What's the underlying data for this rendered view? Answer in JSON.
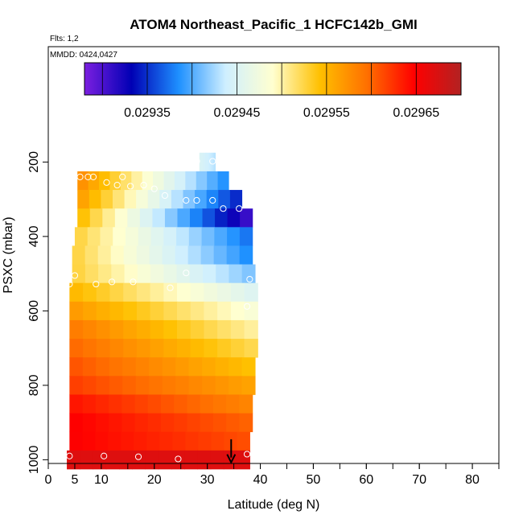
{
  "chart_data": {
    "type": "heatmap",
    "title": "ATOM4 Northeast_Pacific_1 HCFC142b_GMI",
    "subtitle_flights": "Flts: 1,2",
    "subtitle_dates": "MMDD: 0424,0427",
    "xlabel": "Latitude (deg N)",
    "ylabel": "PSXC (mbar)",
    "xlim": [
      0,
      85
    ],
    "ylim": [
      1010,
      -110
    ],
    "y_reversed": true,
    "x_ticks": [
      0,
      5,
      10,
      20,
      30,
      40,
      50,
      60,
      70,
      80
    ],
    "x_minor_ticks": [
      5,
      10,
      15,
      20,
      25,
      30,
      35,
      40,
      45,
      50,
      55,
      60,
      65,
      70,
      75,
      80,
      85
    ],
    "y_ticks": [
      200,
      400,
      600,
      800,
      1000
    ],
    "colorbar": {
      "min": 0.02928,
      "max": 0.0297,
      "tick_values": [
        0.02935,
        0.02945,
        0.02955,
        0.02965
      ],
      "tick_labels": [
        "0.02935",
        "0.02945",
        "0.02955",
        "0.02965"
      ],
      "stops": [
        "#7b1fe0",
        "#0000b4",
        "#1e90ff",
        "#cfefff",
        "#ffffd0",
        "#ffc000",
        "#ff7000",
        "#ff0000",
        "#b22222"
      ]
    },
    "layers": [
      {
        "p": 200,
        "x0": 28.5,
        "x1": 31.5,
        "v0": 0.02945,
        "v1": 0.02943
      },
      {
        "p": 250,
        "x0": 5.5,
        "x1": 34,
        "v0": 0.02958,
        "v1": 0.02938
      },
      {
        "p": 300,
        "x0": 5.5,
        "x1": 36.5,
        "v0": 0.02957,
        "v1": 0.02934
      },
      {
        "p": 350,
        "x0": 5.5,
        "x1": 38.5,
        "v0": 0.02955,
        "v1": 0.0293
      },
      {
        "p": 400,
        "x0": 5,
        "x1": 38.5,
        "v0": 0.02953,
        "v1": 0.02937
      },
      {
        "p": 450,
        "x0": 4.5,
        "x1": 38.5,
        "v0": 0.02953,
        "v1": 0.02938
      },
      {
        "p": 500,
        "x0": 4.5,
        "x1": 39,
        "v0": 0.02953,
        "v1": 0.02941
      },
      {
        "p": 550,
        "x0": 4,
        "x1": 39.5,
        "v0": 0.02955,
        "v1": 0.02945
      },
      {
        "p": 600,
        "x0": 4,
        "x1": 39.5,
        "v0": 0.02957,
        "v1": 0.02948
      },
      {
        "p": 650,
        "x0": 4,
        "x1": 39.5,
        "v0": 0.02959,
        "v1": 0.0295
      },
      {
        "p": 700,
        "x0": 4,
        "x1": 39.5,
        "v0": 0.0296,
        "v1": 0.02952
      },
      {
        "p": 750,
        "x0": 4,
        "x1": 39,
        "v0": 0.02961,
        "v1": 0.02954
      },
      {
        "p": 800,
        "x0": 4,
        "x1": 39,
        "v0": 0.02962,
        "v1": 0.02956
      },
      {
        "p": 850,
        "x0": 4,
        "x1": 38.5,
        "v0": 0.02964,
        "v1": 0.02958
      },
      {
        "p": 900,
        "x0": 4,
        "x1": 38.5,
        "v0": 0.02965,
        "v1": 0.0296
      },
      {
        "p": 950,
        "x0": 4,
        "x1": 38,
        "v0": 0.02965,
        "v1": 0.02961
      },
      {
        "p": 1000,
        "x0": 3.5,
        "x1": 38,
        "v0": 0.02967,
        "v1": 0.02967
      }
    ],
    "observations": [
      {
        "lat": 28,
        "p": 198
      },
      {
        "lat": 31,
        "p": 198
      },
      {
        "lat": 6,
        "p": 240
      },
      {
        "lat": 7.5,
        "p": 240
      },
      {
        "lat": 8.5,
        "p": 240
      },
      {
        "lat": 11,
        "p": 255
      },
      {
        "lat": 14,
        "p": 240
      },
      {
        "lat": 13,
        "p": 262
      },
      {
        "lat": 15.5,
        "p": 265
      },
      {
        "lat": 18,
        "p": 262
      },
      {
        "lat": 20,
        "p": 272
      },
      {
        "lat": 22,
        "p": 290
      },
      {
        "lat": 26,
        "p": 303
      },
      {
        "lat": 28,
        "p": 303
      },
      {
        "lat": 31,
        "p": 303
      },
      {
        "lat": 33,
        "p": 325
      },
      {
        "lat": 36,
        "p": 325
      },
      {
        "lat": 5,
        "p": 505
      },
      {
        "lat": 4,
        "p": 528
      },
      {
        "lat": 9,
        "p": 528
      },
      {
        "lat": 12,
        "p": 522
      },
      {
        "lat": 16,
        "p": 522
      },
      {
        "lat": 23,
        "p": 538
      },
      {
        "lat": 26,
        "p": 498
      },
      {
        "lat": 38,
        "p": 515
      },
      {
        "lat": 37.5,
        "p": 588
      },
      {
        "lat": 4,
        "p": 990
      },
      {
        "lat": 10.5,
        "p": 990
      },
      {
        "lat": 17,
        "p": 992
      },
      {
        "lat": 24.5,
        "p": 998
      },
      {
        "lat": 37.5,
        "p": 985
      }
    ],
    "marker_arrow": {
      "lat": 34.5,
      "p_from": 945,
      "p_to": 1005
    }
  }
}
